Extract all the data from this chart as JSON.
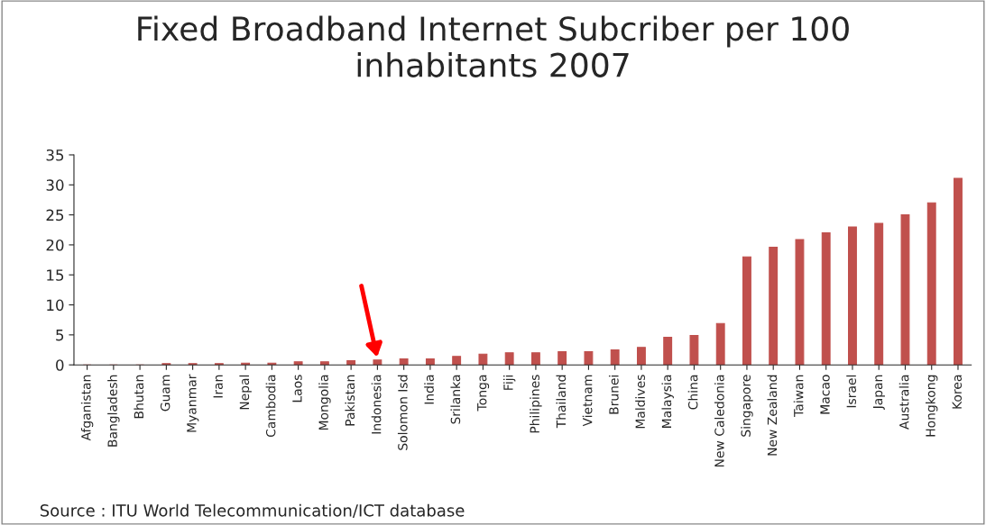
{
  "chart_data": {
    "type": "bar",
    "title": "Fixed Broadband Internet Subcriber per 100\ninhabitants 2007",
    "categories": [
      "Afganistan",
      "Bangladesh",
      "Bhutan",
      "Guam",
      "Myanmar",
      "Iran",
      "Nepal",
      "Cambodia",
      "Laos",
      "Mongolia",
      "Pakistan",
      "Indonesia",
      "Solomon Isd",
      "India",
      "Srilanka",
      "Tonga",
      "Fiji",
      "Philipines",
      "Thailand",
      "Vietnam",
      "Brunei",
      "Maldives",
      "Malaysia",
      "China",
      "New Caledonia",
      "Singapore",
      "New Zealand",
      "Taiwan",
      "Macao",
      "Israel",
      "Japan",
      "Australia",
      "Hongkong",
      "Korea"
    ],
    "values": [
      0,
      0,
      0,
      0.2,
      0.2,
      0.2,
      0.3,
      0.3,
      0.5,
      0.5,
      0.7,
      0.8,
      1.0,
      1.0,
      1.4,
      1.8,
      2.0,
      2.0,
      2.2,
      2.2,
      2.5,
      2.9,
      4.6,
      4.9,
      6.9,
      18,
      19.6,
      20.9,
      22,
      23,
      23.6,
      25,
      27,
      31.1
    ],
    "color": "#c0504d",
    "ylim": [
      0,
      35
    ],
    "yticks": [
      0,
      5,
      10,
      15,
      20,
      25,
      30,
      35
    ],
    "grid": false,
    "annotations": [
      "Source : ITU World Telecommunication/ICT database"
    ]
  }
}
